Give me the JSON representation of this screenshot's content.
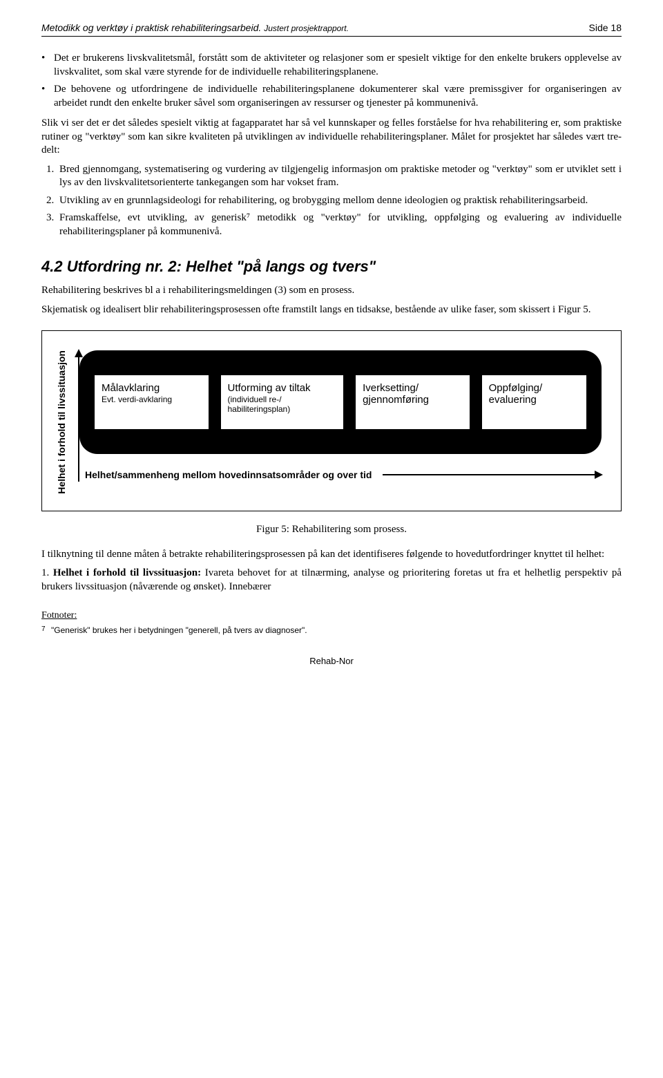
{
  "header": {
    "title_main": "Metodikk og verktøy i praktisk rehabiliteringsarbeid.",
    "title_sub": "Justert prosjektrapport.",
    "page_label": "Side 18"
  },
  "bullets": [
    "Det er brukerens livskvalitetsmål, forstått som de aktiviteter og relasjoner som er spesielt viktige for den enkelte brukers opplevelse av livskvalitet, som skal være styrende for de individuelle rehabiliteringsplanene.",
    "De behovene og utfordringene de individuelle rehabiliteringsplanene dokumenterer skal være premissgiver for organiseringen av arbeidet rundt den enkelte bruker såvel som organiseringen av ressurser og tjenester på kommunenivå."
  ],
  "para1": "Slik vi ser det er det således spesielt viktig at fagapparatet har så vel kunnskaper og felles forståelse for hva rehabilitering er, som praktiske rutiner og \"verktøy\" som kan sikre kvaliteten på utviklingen av individuelle rehabiliteringsplaner. Målet for prosjektet har således vært tre-delt:",
  "numbered": [
    "Bred gjennomgang, systematisering og vurdering av tilgjengelig informasjon om praktiske metoder og \"verktøy\" som er utviklet sett i lys av den livskvalitetsorienterte tankegangen som har vokset fram.",
    "Utvikling av en grunnlagsideologi for rehabilitering, og brobygging mellom denne ideologien og praktisk rehabiliteringsarbeid.",
    "Framskaffelse, evt utvikling, av generisk⁷ metodikk og \"verktøy\" for utvikling, oppfølging og evaluering av individuelle rehabiliteringsplaner på kommunenivå."
  ],
  "section_heading": "4.2 Utfordring nr. 2: Helhet \"på langs og tvers\"",
  "para2": "Rehabilitering beskrives bl a i rehabiliteringsmeldingen (3) som en prosess.",
  "para3": "Skjematisk og idealisert blir rehabiliteringsprosessen ofte framstilt langs en tidsakse, bestående av ulike faser, som skissert i Figur 5.",
  "figure": {
    "y_axis": "Helhet i forhold til  livssituasjon",
    "stages": [
      {
        "t1": "Målavklaring",
        "t2": "Evt. verdi-avklaring"
      },
      {
        "t1": "Utforming av tiltak",
        "t2": "(individuell re-/ habiliteringsplan)"
      },
      {
        "t1": "Iverksetting/ gjennomføring",
        "t2": ""
      },
      {
        "t1": "Oppfølging/ evaluering",
        "t2": ""
      }
    ],
    "x_axis": "Helhet/sammenheng mellom hovedinnsatsområder og over tid",
    "bg_color": "#000000",
    "stage_bg": "#ffffff"
  },
  "caption": "Figur 5: Rehabilitering som prosess.",
  "para4": "I tilknytning til denne måten å betrakte rehabiliteringsprosessen på kan det identifiseres følgende to hovedutfordringer knyttet til helhet:",
  "num2_prefix": "1.  ",
  "num2_bold": "Helhet i forhold til livssituasjon:",
  "num2_rest": " Ivareta behovet for at tilnærming, analyse og prioritering foretas ut fra et helhetlig perspektiv på brukers livssituasjon (nåværende og ønsket). Innebærer",
  "footnotes": {
    "heading": "Fotnoter:",
    "items": [
      {
        "num": "7",
        "text": "\"Generisk\" brukes her i betydningen \"generell, på tvers av diagnoser\"."
      }
    ]
  },
  "footer": "Rehab-Nor"
}
